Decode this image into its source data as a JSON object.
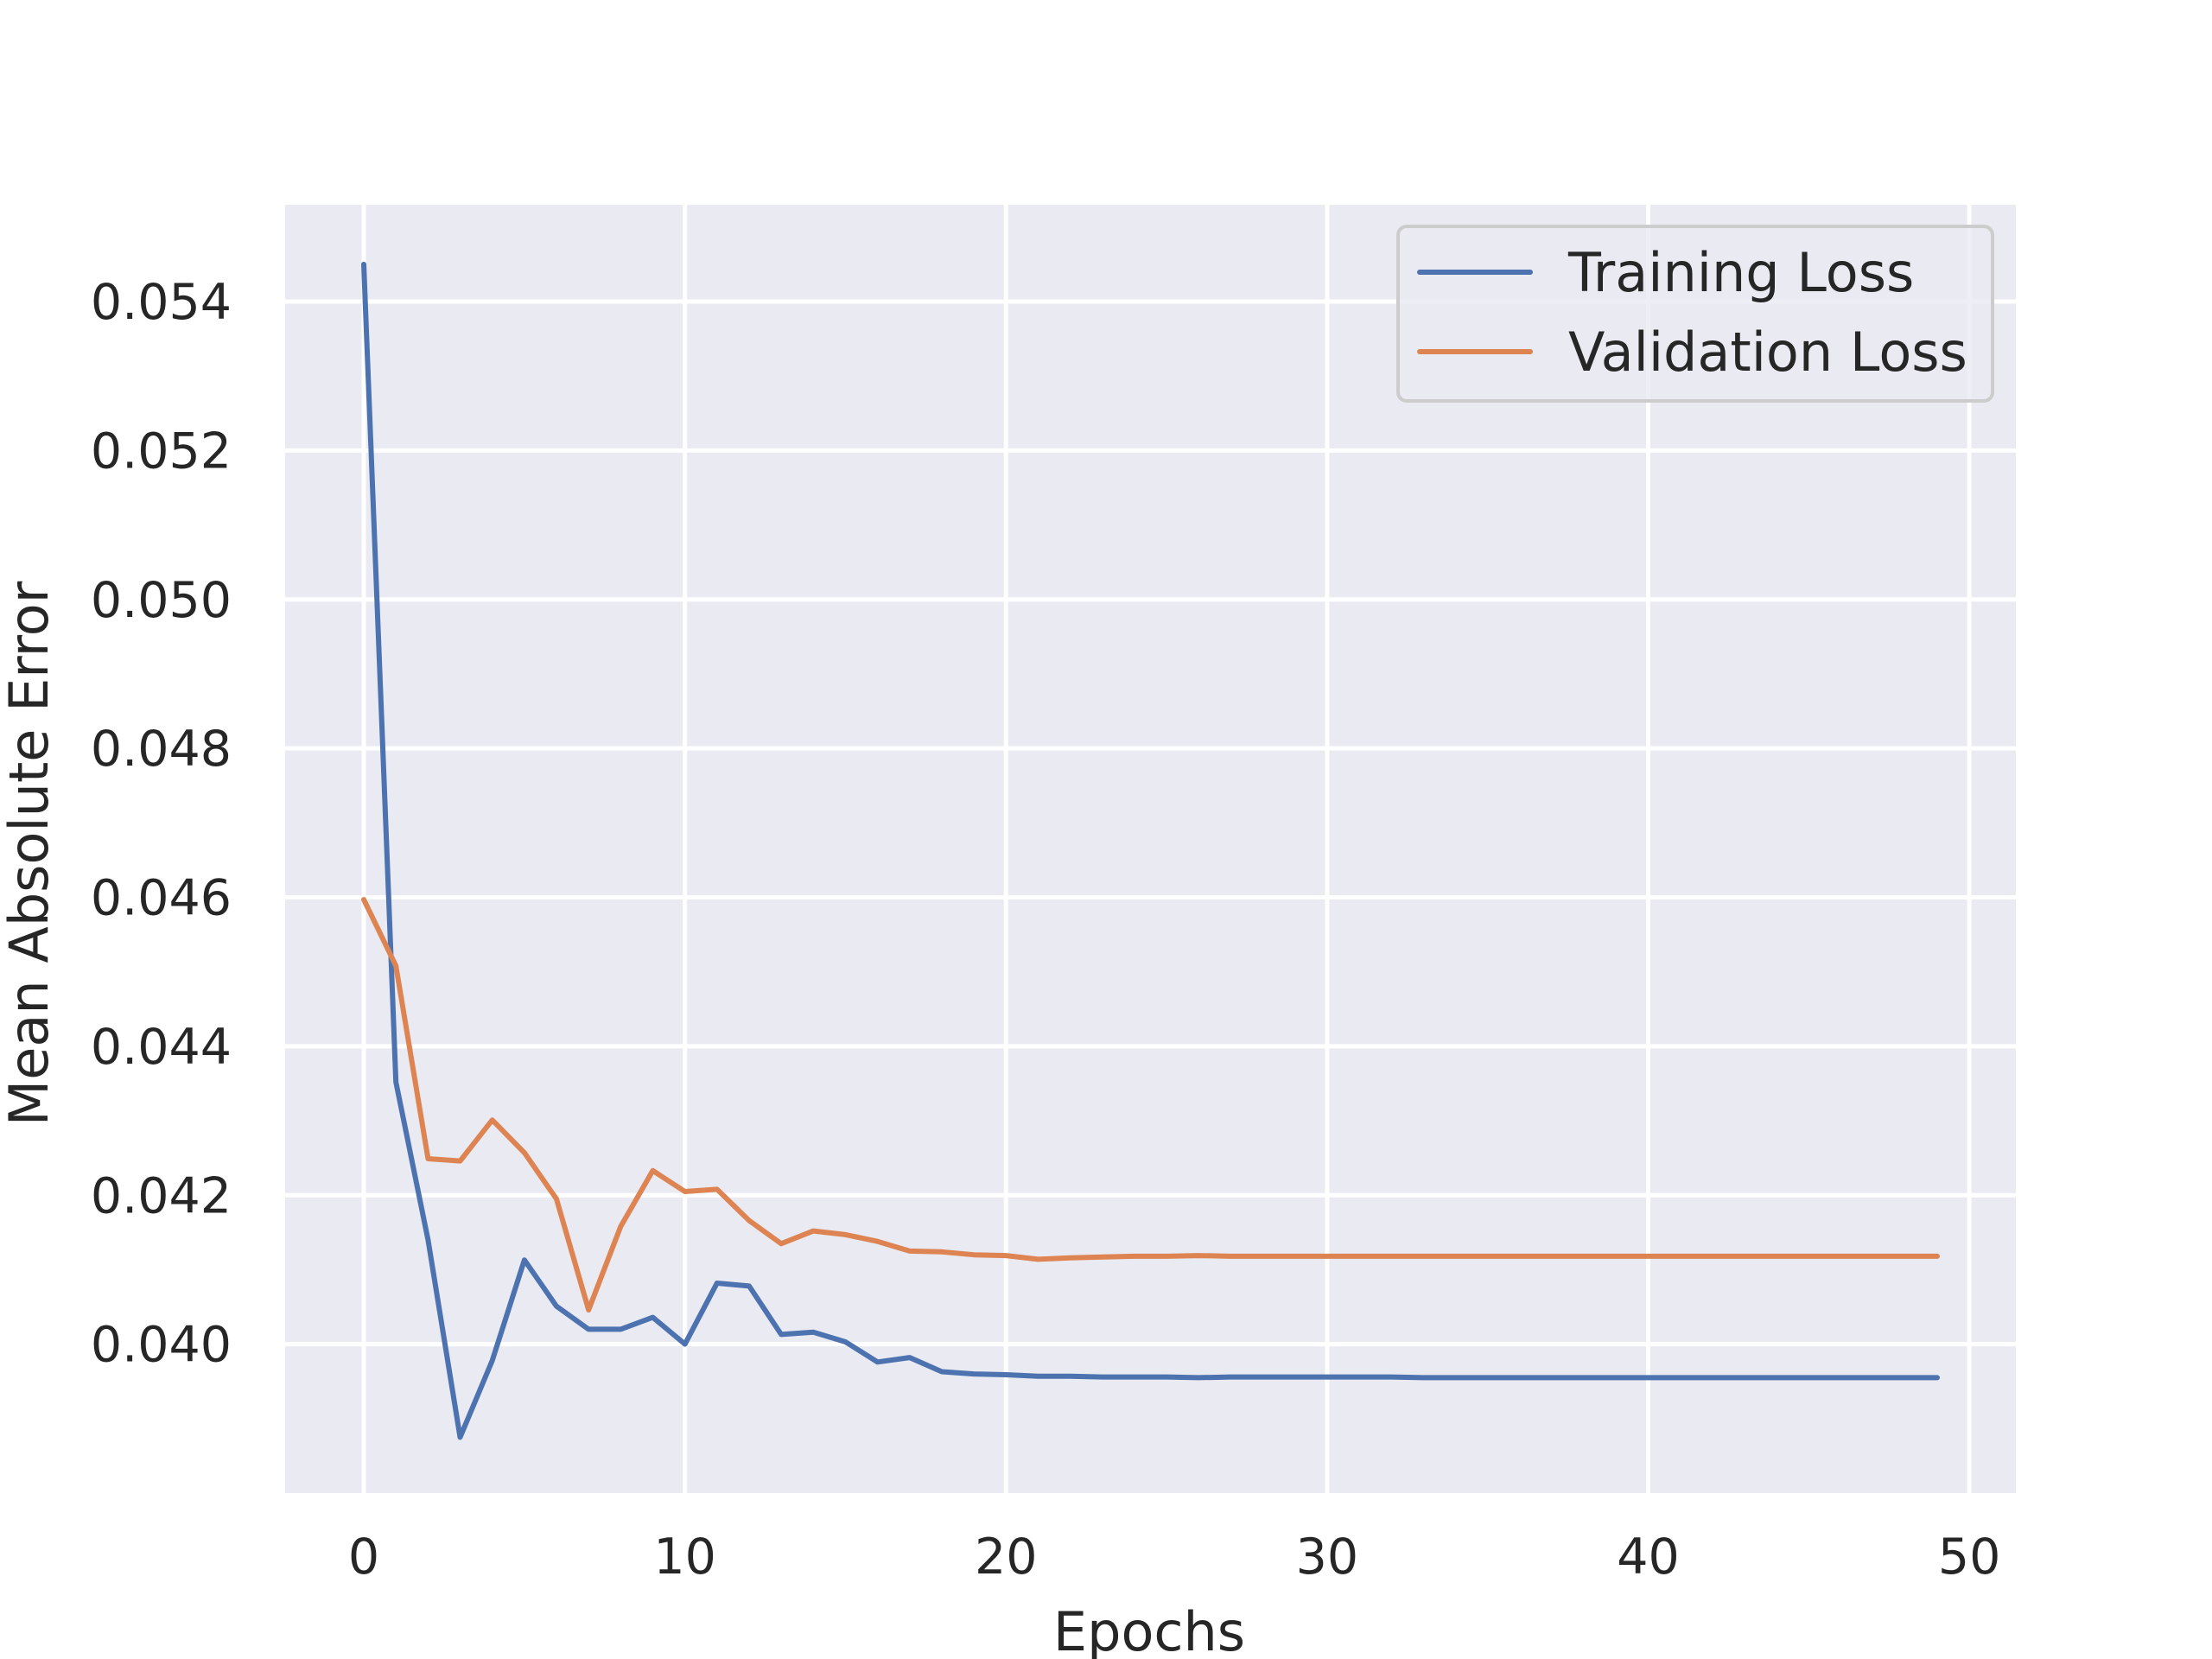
{
  "chart_data": {
    "type": "line",
    "title": "",
    "xlabel": "Epochs",
    "ylabel": "Mean Absolute Error",
    "xlim": [
      -2.45,
      51.45
    ],
    "ylim": [
      0.038,
      0.0553
    ],
    "xticks": [
      0,
      10,
      20,
      30,
      40,
      50
    ],
    "xtick_labels": [
      "0",
      "10",
      "20",
      "30",
      "40",
      "50"
    ],
    "yticks": [
      0.04,
      0.042,
      0.044,
      0.046,
      0.048,
      0.05,
      0.052,
      0.054
    ],
    "ytick_labels": [
      "0.040",
      "0.042",
      "0.044",
      "0.046",
      "0.048",
      "0.050",
      "0.052",
      "0.054"
    ],
    "grid": true,
    "legend_position": "top-right",
    "background": "#eaeaf2",
    "series": [
      {
        "name": "Training Loss",
        "color": "#4c72b0",
        "x": [
          0,
          1,
          2,
          3,
          4,
          5,
          6,
          7,
          8,
          9,
          10,
          11,
          12,
          13,
          14,
          15,
          16,
          17,
          18,
          19,
          20,
          21,
          22,
          23,
          24,
          25,
          26,
          27,
          28,
          29,
          30,
          31,
          32,
          33,
          34,
          35,
          36,
          37,
          38,
          39,
          40,
          41,
          42,
          43,
          44,
          45,
          46,
          47,
          48,
          49
        ],
        "values": [
          0.0545,
          0.04352,
          0.0414,
          0.03875,
          0.03978,
          0.04113,
          0.04051,
          0.0402,
          0.0402,
          0.04036,
          0.04,
          0.04082,
          0.04078,
          0.04013,
          0.04016,
          0.04003,
          0.03976,
          0.03982,
          0.03963,
          0.0396,
          0.03959,
          0.03957,
          0.03957,
          0.03956,
          0.03956,
          0.03956,
          0.03955,
          0.03956,
          0.03956,
          0.03956,
          0.03956,
          0.03956,
          0.03956,
          0.03955,
          0.03955,
          0.03955,
          0.03955,
          0.03955,
          0.03955,
          0.03955,
          0.03955,
          0.03955,
          0.03955,
          0.03955,
          0.03955,
          0.03955,
          0.03955,
          0.03955,
          0.03955,
          0.03955
        ]
      },
      {
        "name": "Validation Loss",
        "color": "#dd8452",
        "x": [
          0,
          1,
          2,
          3,
          4,
          5,
          6,
          7,
          8,
          9,
          10,
          11,
          12,
          13,
          14,
          15,
          16,
          17,
          18,
          19,
          20,
          21,
          22,
          23,
          24,
          25,
          26,
          27,
          28,
          29,
          30,
          31,
          32,
          33,
          34,
          35,
          36,
          37,
          38,
          39,
          40,
          41,
          42,
          43,
          44,
          45,
          46,
          47,
          48,
          49
        ],
        "values": [
          0.04597,
          0.04508,
          0.04249,
          0.04246,
          0.04301,
          0.04257,
          0.04195,
          0.04046,
          0.04158,
          0.04233,
          0.04205,
          0.04208,
          0.04166,
          0.04135,
          0.04152,
          0.04147,
          0.04138,
          0.04125,
          0.04124,
          0.0412,
          0.04119,
          0.04114,
          0.04116,
          0.04117,
          0.04118,
          0.04118,
          0.04119,
          0.04118,
          0.04118,
          0.04118,
          0.04118,
          0.04118,
          0.04118,
          0.04118,
          0.04118,
          0.04118,
          0.04118,
          0.04118,
          0.04118,
          0.04118,
          0.04118,
          0.04118,
          0.04118,
          0.04118,
          0.04118,
          0.04118,
          0.04118,
          0.04118,
          0.04118,
          0.04118
        ]
      }
    ]
  }
}
